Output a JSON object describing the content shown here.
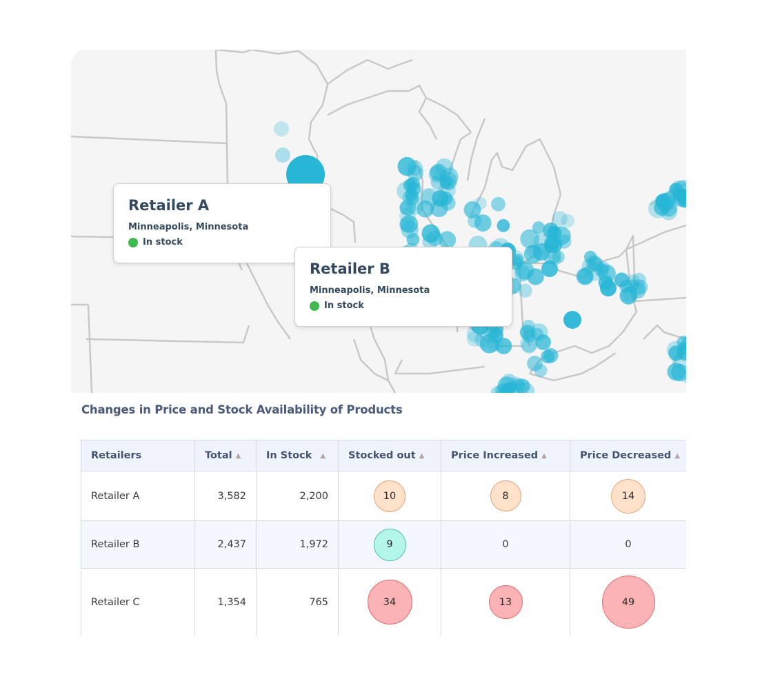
{
  "colors": {
    "map_background": "#f5f5f5",
    "map_border_lines": "#c8c8c8",
    "map_points": "#27b6d6",
    "in_stock": "#3fb950",
    "header_bg": "#eef3fc",
    "bubble_orange": "#fde1c9",
    "bubble_teal": "#b5f6ea",
    "bubble_red": "#fbb3b5"
  },
  "map": {
    "tooltips": [
      {
        "title": "Retailer A",
        "location": "Minneapolis, Minnesota",
        "status": "In stock"
      },
      {
        "title": "Retailer B",
        "location": "Minneapolis, Minnesota",
        "status": "In stock"
      }
    ]
  },
  "table": {
    "title": "Changes in Price and Stock Availability of Products",
    "columns": [
      "Retailers",
      "Total",
      "In Stock",
      "Stocked out",
      "Price Increased",
      "Price Decreased"
    ],
    "sort_indicator": "▲",
    "rows": [
      {
        "retailer": "Retailer A",
        "total": "3,582",
        "in_stock": "2,200",
        "stocked_out": "10",
        "price_increased": "8",
        "price_decreased": "14"
      },
      {
        "retailer": "Retailer B",
        "total": "2,437",
        "in_stock": "1,972",
        "stocked_out": "9",
        "price_increased": "0",
        "price_decreased": "0"
      },
      {
        "retailer": "Retailer C",
        "total": "1,354",
        "in_stock": "765",
        "stocked_out": "34",
        "price_increased": "13",
        "price_decreased": "49"
      }
    ]
  }
}
